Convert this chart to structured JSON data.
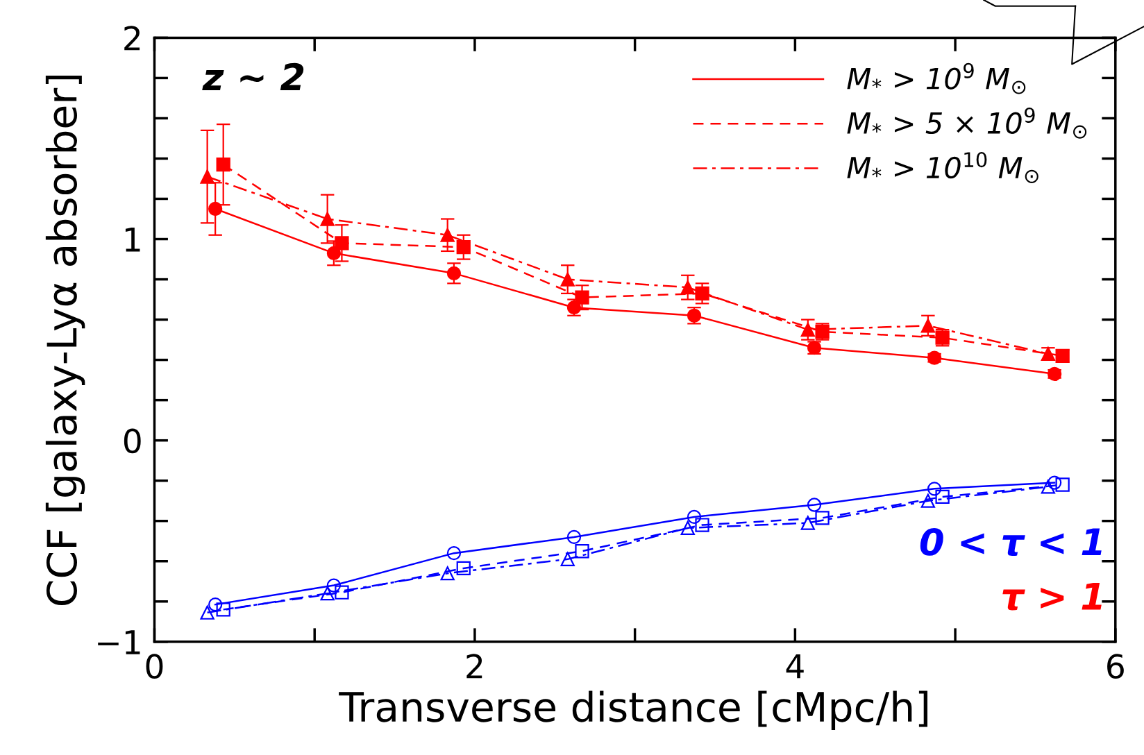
{
  "chart_data": {
    "type": "line",
    "xlabel": "Transverse distance [cMpc/h]",
    "ylabel": "CCF [galaxy-Lyα absorber]",
    "xlim": [
      0,
      6
    ],
    "xticks": [
      0,
      2,
      4,
      6
    ],
    "ylim": [
      -1,
      2
    ],
    "yticks": [
      {
        "value": -1,
        "label": "−1"
      },
      0,
      1,
      2
    ],
    "grid": false,
    "legend": "top right",
    "annotations": [
      "z ~ 2",
      "0 < τ < 1",
      "τ > 1"
    ],
    "series": [
      {
        "name": "M$_{*}$ > 10$^{9}$ M$_{⊙}$",
        "color": "#ff0000",
        "marker": "circle",
        "line_style": "solid",
        "x": [
          0.38,
          1.12,
          1.87,
          2.62,
          3.37,
          4.12,
          4.87,
          5.62
        ],
        "values": [
          1.15,
          0.93,
          0.83,
          0.66,
          0.62,
          0.46,
          0.41,
          0.33
        ],
        "errors": [
          0.13,
          0.06,
          0.05,
          0.04,
          0.04,
          0.03,
          0.02,
          0.02
        ]
      },
      {
        "name": "M$_{*}$ > 5 × 10$^{9}$ M$_{⊙}$",
        "color": "#ff0000",
        "marker": "square",
        "line_style": "dashed",
        "x": [
          0.43,
          1.17,
          1.93,
          2.67,
          3.42,
          4.17,
          4.92,
          5.67
        ],
        "values": [
          1.37,
          0.98,
          0.96,
          0.71,
          0.73,
          0.54,
          0.51,
          0.42
        ],
        "errors": [
          0.2,
          0.09,
          0.06,
          0.06,
          0.05,
          0.04,
          0.04,
          0.03
        ]
      },
      {
        "name": "M$_{*}$ > 10$^{10}$ M$_{⊙}$",
        "color": "#ff0000",
        "marker": "triangle",
        "line_style": "dashdot",
        "x": [
          0.33,
          1.08,
          1.83,
          2.58,
          3.33,
          4.08,
          4.83,
          5.58
        ],
        "values": [
          1.31,
          1.1,
          1.02,
          0.8,
          0.76,
          0.55,
          0.57,
          0.43
        ],
        "errors": [
          0.23,
          0.12,
          0.08,
          0.07,
          0.06,
          0.05,
          0.05,
          0.03
        ]
      },
      {
        "color": "#0000ff",
        "marker": "circle",
        "line_style": "solid",
        "x": [
          0.38,
          1.12,
          1.87,
          2.62,
          3.37,
          4.12,
          4.87,
          5.62
        ],
        "values": [
          -0.815,
          -0.72,
          -0.56,
          -0.48,
          -0.38,
          -0.32,
          -0.24,
          -0.21
        ]
      },
      {
        "color": "#0000ff",
        "marker": "square",
        "line_style": "dashed",
        "x": [
          0.43,
          1.17,
          1.93,
          2.67,
          3.42,
          4.17,
          4.92,
          5.67
        ],
        "values": [
          -0.84,
          -0.755,
          -0.635,
          -0.55,
          -0.42,
          -0.385,
          -0.28,
          -0.22
        ]
      },
      {
        "color": "#0000ff",
        "marker": "triangle",
        "line_style": "dashdot",
        "x": [
          0.33,
          1.08,
          1.83,
          2.58,
          3.33,
          4.08,
          4.83,
          5.58
        ],
        "values": [
          -0.855,
          -0.76,
          -0.66,
          -0.59,
          -0.435,
          -0.41,
          -0.3,
          -0.23
        ]
      }
    ]
  }
}
